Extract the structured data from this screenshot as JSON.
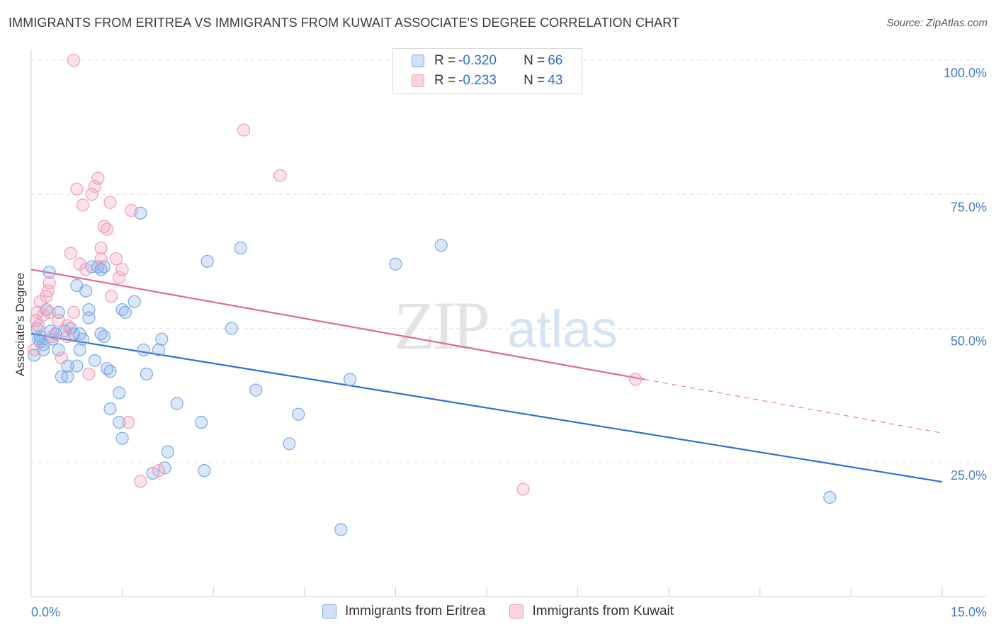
{
  "header": {
    "title": "IMMIGRANTS FROM ERITREA VS IMMIGRANTS FROM KUWAIT ASSOCIATE'S DEGREE CORRELATION CHART",
    "source": "Source: ZipAtlas.com"
  },
  "watermark": {
    "zip": "ZIP",
    "atlas": "atlas"
  },
  "legend": {
    "rows": [
      {
        "r_label": "R = ",
        "r_value": "-0.320",
        "n_label": "N = ",
        "n_value": "66",
        "color": "#7aa9e6"
      },
      {
        "r_label": "R = ",
        "r_value": "-0.233",
        "n_label": "N = ",
        "n_value": "43",
        "color": "#f29bb7"
      }
    ]
  },
  "bottom_legend": [
    {
      "label": "Immigrants from Eritrea",
      "color": "#7aa9e6"
    },
    {
      "label": "Immigrants from Kuwait",
      "color": "#f29bb7"
    }
  ],
  "chart_data": {
    "type": "scatter",
    "title": "IMMIGRANTS FROM ERITREA VS IMMIGRANTS FROM KUWAIT ASSOCIATE'S DEGREE CORRELATION CHART",
    "xlabel": "",
    "ylabel": "Associate's Degree",
    "xlim": [
      0,
      15
    ],
    "ylim": [
      0,
      102
    ],
    "x_tick_labels": [
      "0.0%",
      "15.0%"
    ],
    "y_ticks": [
      25,
      50,
      75,
      100
    ],
    "y_tick_labels": [
      "25.0%",
      "50.0%",
      "75.0%",
      "100.0%"
    ],
    "grid": true,
    "legend_position": "top-center",
    "series": [
      {
        "name": "Immigrants from Eritrea",
        "color": "#7aa9e6",
        "line_color": "#2f6fd0",
        "trend": {
          "x": [
            0,
            15
          ],
          "y": [
            49,
            21.4
          ]
        },
        "points": [
          [
            0.05,
            45
          ],
          [
            0.1,
            50
          ],
          [
            0.12,
            48
          ],
          [
            0.15,
            47.5
          ],
          [
            0.2,
            46
          ],
          [
            0.25,
            53.5
          ],
          [
            0.3,
            60.5
          ],
          [
            0.32,
            49.5
          ],
          [
            0.35,
            48
          ],
          [
            0.4,
            49
          ],
          [
            0.45,
            53
          ],
          [
            0.45,
            46
          ],
          [
            0.5,
            41
          ],
          [
            0.6,
            41
          ],
          [
            0.6,
            43
          ],
          [
            0.65,
            50
          ],
          [
            0.7,
            49
          ],
          [
            0.75,
            58
          ],
          [
            0.75,
            43
          ],
          [
            0.8,
            46
          ],
          [
            0.8,
            49
          ],
          [
            0.85,
            48
          ],
          [
            0.9,
            57
          ],
          [
            0.95,
            53.5
          ],
          [
            0.95,
            52
          ],
          [
            1.0,
            61.5
          ],
          [
            1.05,
            44
          ],
          [
            1.1,
            61.5
          ],
          [
            1.15,
            61
          ],
          [
            1.15,
            49
          ],
          [
            1.2,
            48.5
          ],
          [
            1.25,
            42.5
          ],
          [
            1.3,
            35
          ],
          [
            1.3,
            42
          ],
          [
            1.45,
            38
          ],
          [
            1.45,
            32.5
          ],
          [
            1.5,
            53.5
          ],
          [
            1.5,
            29.5
          ],
          [
            1.55,
            53
          ],
          [
            1.7,
            55
          ],
          [
            1.8,
            71.5
          ],
          [
            1.85,
            46
          ],
          [
            1.9,
            41.5
          ],
          [
            2.0,
            23
          ],
          [
            2.1,
            46
          ],
          [
            2.15,
            48
          ],
          [
            2.2,
            24
          ],
          [
            2.25,
            27
          ],
          [
            2.4,
            36
          ],
          [
            2.8,
            32.5
          ],
          [
            2.85,
            23.5
          ],
          [
            2.9,
            62.5
          ],
          [
            3.3,
            50
          ],
          [
            3.45,
            65
          ],
          [
            3.7,
            38.5
          ],
          [
            4.25,
            28.5
          ],
          [
            4.4,
            34
          ],
          [
            5.1,
            12.5
          ],
          [
            5.25,
            40.5
          ],
          [
            6.0,
            62
          ],
          [
            6.75,
            65.5
          ],
          [
            13.15,
            18.5
          ],
          [
            0.2,
            47
          ],
          [
            0.55,
            49.5
          ],
          [
            1.2,
            61.5
          ],
          [
            0.15,
            48.5
          ]
        ]
      },
      {
        "name": "Immigrants from Kuwait",
        "color": "#f29bb7",
        "line_color": "#e0698f",
        "trend": {
          "x": [
            0,
            10.1
          ],
          "y": [
            61,
            40.5
          ]
        },
        "trend_extension": {
          "x": [
            10.1,
            15
          ],
          "y": [
            40.5,
            30.5
          ]
        },
        "points": [
          [
            0.05,
            46
          ],
          [
            0.08,
            51.5
          ],
          [
            0.1,
            53
          ],
          [
            0.12,
            50.5
          ],
          [
            0.15,
            55
          ],
          [
            0.2,
            52.5
          ],
          [
            0.25,
            56
          ],
          [
            0.28,
            57
          ],
          [
            0.3,
            58.5
          ],
          [
            0.3,
            53
          ],
          [
            0.35,
            48.5
          ],
          [
            0.45,
            51.5
          ],
          [
            0.5,
            44.5
          ],
          [
            0.6,
            50.5
          ],
          [
            0.6,
            48.5
          ],
          [
            0.65,
            64
          ],
          [
            0.7,
            53
          ],
          [
            0.75,
            76
          ],
          [
            0.8,
            62
          ],
          [
            0.85,
            73
          ],
          [
            0.9,
            61
          ],
          [
            0.95,
            41.5
          ],
          [
            1.0,
            75
          ],
          [
            1.05,
            76.5
          ],
          [
            1.1,
            78
          ],
          [
            1.15,
            63
          ],
          [
            1.15,
            65
          ],
          [
            1.2,
            69
          ],
          [
            1.25,
            68.5
          ],
          [
            1.3,
            73.5
          ],
          [
            1.32,
            56
          ],
          [
            1.4,
            63
          ],
          [
            1.45,
            59.5
          ],
          [
            1.5,
            61
          ],
          [
            1.6,
            32.5
          ],
          [
            1.65,
            72
          ],
          [
            1.8,
            21.5
          ],
          [
            2.1,
            23.5
          ],
          [
            3.5,
            87
          ],
          [
            4.1,
            78.5
          ],
          [
            0.7,
            100
          ],
          [
            8.1,
            20
          ],
          [
            9.95,
            40.5
          ]
        ]
      }
    ]
  }
}
